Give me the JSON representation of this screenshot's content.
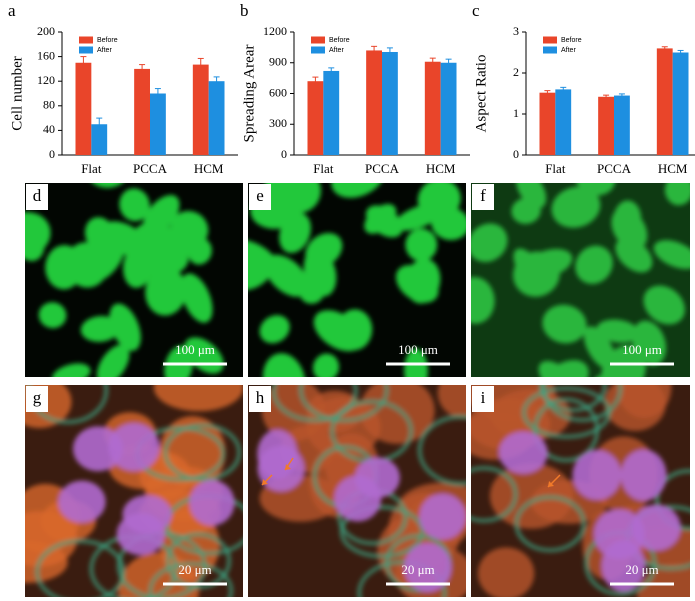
{
  "chart_data": [
    {
      "type": "bar",
      "panel": "a",
      "y_label": "Cell number",
      "categories": [
        "Flat",
        "PCCA",
        "HCM"
      ],
      "ylim": [
        0,
        200
      ],
      "yticks": [
        0,
        40,
        80,
        120,
        160,
        200
      ],
      "series": [
        {
          "name": "Before",
          "color": "#e9452a",
          "values": [
            150,
            140,
            147
          ],
          "errors": [
            10,
            7,
            10
          ]
        },
        {
          "name": "After",
          "color": "#1e8fe0",
          "values": [
            50,
            100,
            120
          ],
          "errors": [
            10,
            8,
            7
          ]
        }
      ]
    },
    {
      "type": "bar",
      "panel": "b",
      "y_label": "Spreading Arear",
      "categories": [
        "Flat",
        "PCCA",
        "HCM"
      ],
      "ylim": [
        0,
        1200
      ],
      "yticks": [
        0,
        300,
        600,
        900,
        1200
      ],
      "series": [
        {
          "name": "Before",
          "color": "#e9452a",
          "values": [
            720,
            1020,
            910
          ],
          "errors": [
            40,
            40,
            35
          ]
        },
        {
          "name": "After",
          "color": "#1e8fe0",
          "values": [
            820,
            1005,
            900
          ],
          "errors": [
            30,
            40,
            35
          ]
        }
      ]
    },
    {
      "type": "bar",
      "panel": "c",
      "y_label": "Aspect Ratio",
      "categories": [
        "Flat",
        "PCCA",
        "HCM"
      ],
      "ylim": [
        0,
        3
      ],
      "yticks": [
        0,
        1,
        2,
        3
      ],
      "series": [
        {
          "name": "Before",
          "color": "#e9452a",
          "values": [
            1.52,
            1.42,
            2.6
          ],
          "errors": [
            0.05,
            0.04,
            0.04
          ]
        },
        {
          "name": "After",
          "color": "#1e8fe0",
          "values": [
            1.6,
            1.45,
            2.5
          ],
          "errors": [
            0.05,
            0.04,
            0.05
          ]
        }
      ]
    }
  ],
  "image_panels": [
    {
      "label": "d",
      "scale_bar": "100 μm"
    },
    {
      "label": "e",
      "scale_bar": "100 μm"
    },
    {
      "label": "f",
      "scale_bar": "100 μm"
    },
    {
      "label": "g",
      "scale_bar": "20 μm"
    },
    {
      "label": "h",
      "scale_bar": "20 μm"
    },
    {
      "label": "i",
      "scale_bar": "20 μm"
    }
  ]
}
